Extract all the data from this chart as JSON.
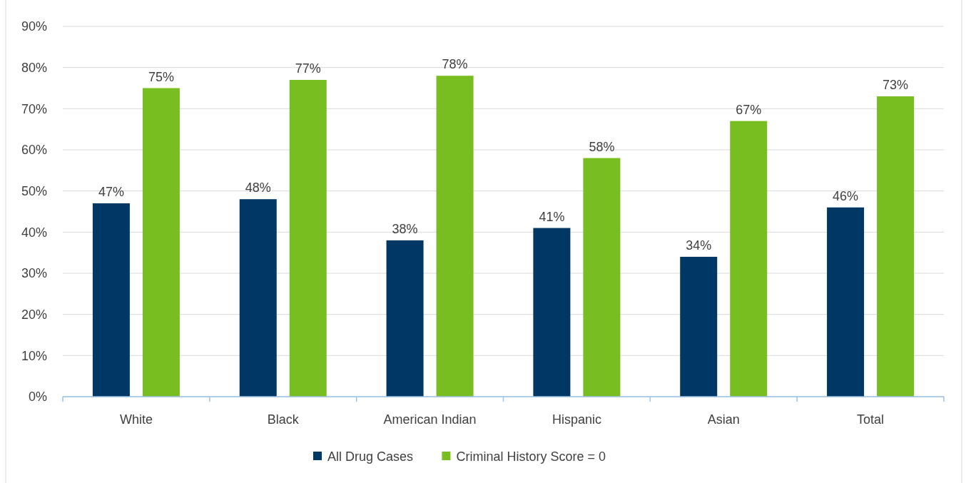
{
  "chart_data": {
    "type": "bar",
    "categories": [
      "White",
      "Black",
      "American Indian",
      "Hispanic",
      "Asian",
      "Total"
    ],
    "series": [
      {
        "name": "All Drug Cases",
        "color": "#003865",
        "values": [
          47,
          48,
          38,
          41,
          34,
          46
        ],
        "value_labels": [
          "47%",
          "48%",
          "38%",
          "41%",
          "34%",
          "46%"
        ]
      },
      {
        "name": "Criminal History Score = 0",
        "color": "#78be20",
        "values": [
          75,
          77,
          78,
          58,
          67,
          73
        ],
        "value_labels": [
          "75%",
          "77%",
          "78%",
          "58%",
          "67%",
          "73%"
        ]
      }
    ],
    "ylim": [
      0,
      90
    ],
    "yticks": [
      {
        "value": 0,
        "label": "0%"
      },
      {
        "value": 10,
        "label": "10%"
      },
      {
        "value": 20,
        "label": "20%"
      },
      {
        "value": 30,
        "label": "30%"
      },
      {
        "value": 40,
        "label": "40%"
      },
      {
        "value": 50,
        "label": "50%"
      },
      {
        "value": 60,
        "label": "60%"
      },
      {
        "value": 70,
        "label": "70%"
      },
      {
        "value": 80,
        "label": "80%"
      },
      {
        "value": 90,
        "label": "90%"
      }
    ],
    "grid": "y",
    "legend": "bottom"
  }
}
